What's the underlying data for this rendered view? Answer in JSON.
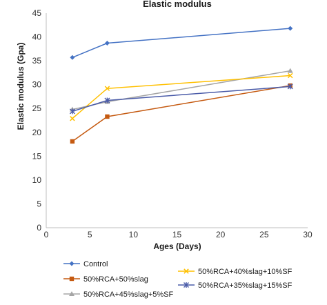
{
  "chart_data": {
    "type": "line",
    "title": "Elastic modulus",
    "xlabel": "Ages (Days)",
    "ylabel": "Elastic modulus (Gpa)",
    "xlim": [
      0,
      30
    ],
    "ylim": [
      0,
      45
    ],
    "x_ticks": [
      "0",
      "5",
      "10",
      "15",
      "20",
      "25",
      "30"
    ],
    "y_ticks": [
      "0",
      "5",
      "10",
      "15",
      "20",
      "25",
      "30",
      "35",
      "40",
      "45"
    ],
    "grid": false,
    "legend_position": "bottom",
    "x": [
      3,
      7,
      28
    ],
    "series": [
      {
        "name": "Control",
        "values": [
          35.7,
          38.7,
          41.8
        ],
        "color": "#4472C4",
        "marker": "diamond"
      },
      {
        "name": "50%RCA+50%slag",
        "values": [
          18.1,
          23.3,
          29.8
        ],
        "color": "#C55A11",
        "marker": "square"
      },
      {
        "name": "50%RCA+45%slag+5%SF",
        "values": [
          24.8,
          26.4,
          32.9
        ],
        "color": "#A5A5A5",
        "marker": "triangle"
      },
      {
        "name": "50%RCA+40%slag+10%SF",
        "values": [
          22.9,
          29.2,
          31.9
        ],
        "color": "#FFC000",
        "marker": "x"
      },
      {
        "name": "50%RCA+35%slag+15%SF",
        "values": [
          24.4,
          26.7,
          29.6
        ],
        "color": "#4A5BA8",
        "marker": "star"
      }
    ]
  }
}
